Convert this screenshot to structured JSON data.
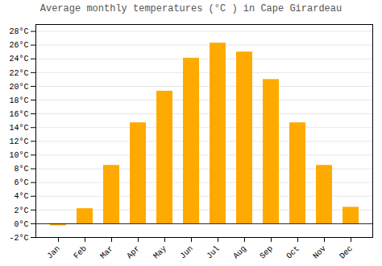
{
  "chart_data": {
    "type": "bar",
    "title": "Average monthly temperatures (°C ) in Cape Girardeau",
    "categories": [
      "Jan",
      "Feb",
      "Mar",
      "Apr",
      "May",
      "Jun",
      "Jul",
      "Aug",
      "Sep",
      "Oct",
      "Nov",
      "Dec"
    ],
    "values": [
      -0.3,
      2.2,
      8.5,
      14.7,
      19.3,
      24.1,
      26.3,
      25.0,
      21.0,
      14.7,
      8.5,
      2.4
    ],
    "color": "#FFAA00",
    "ylim": [
      -2,
      29
    ],
    "yticks": [
      {
        "value": -2,
        "label": "-2°C"
      },
      {
        "value": 0,
        "label": "0°C"
      },
      {
        "value": 2,
        "label": "2°C"
      },
      {
        "value": 4,
        "label": "4°C"
      },
      {
        "value": 6,
        "label": "6°C"
      },
      {
        "value": 8,
        "label": "8°C"
      },
      {
        "value": 10,
        "label": "10°C"
      },
      {
        "value": 12,
        "label": "12°C"
      },
      {
        "value": 14,
        "label": "14°C"
      },
      {
        "value": 16,
        "label": "16°C"
      },
      {
        "value": 18,
        "label": "18°C"
      },
      {
        "value": 20,
        "label": "20°C"
      },
      {
        "value": 22,
        "label": "22°C"
      },
      {
        "value": 24,
        "label": "24°C"
      },
      {
        "value": 26,
        "label": "26°C"
      },
      {
        "value": 28,
        "label": "28°C"
      }
    ],
    "grid": true
  }
}
